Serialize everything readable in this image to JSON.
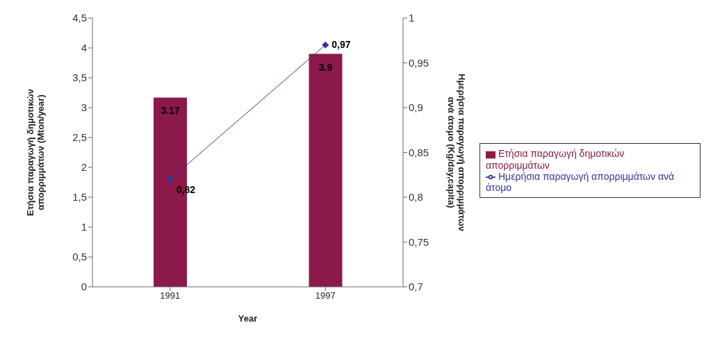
{
  "chart_data": {
    "type": "bar",
    "xlabel": "Year",
    "ylabel": "Ετήσια παραγωγή δημοτικών απορριμμάτων (Mton/year)",
    "y2label": "Ημερήσια παραγωγή απορριμμάτων ανά άτομο (Kg/day,capita)",
    "categories": [
      "1991",
      "1997"
    ],
    "series": [
      {
        "name": "Ετήσια παραγωγή δημοτικών απορριμμάτων",
        "color": "#8b1a4a",
        "values": [
          3.17,
          3.9
        ],
        "value_labels": [
          "3.17",
          "3.9"
        ]
      },
      {
        "name": "Ημερήσια παραγωγή απορριμμάτων ανά άτομο",
        "type": "line",
        "axis": "y2",
        "color": "#333399",
        "values": [
          0.82,
          0.97
        ],
        "value_labels": [
          "0,82",
          "0,97"
        ],
        "marker": "diamond"
      }
    ],
    "ylim": [
      0,
      4.5
    ],
    "yticks": [
      0,
      {
        "value": 0.5,
        "label": "0,5"
      },
      1,
      {
        "value": 1.5,
        "label": "1,5"
      },
      2,
      {
        "value": 2.5,
        "label": "2,5"
      },
      3,
      {
        "value": 3.5,
        "label": "3,5"
      },
      4,
      {
        "value": 4.5,
        "label": "4,5"
      }
    ],
    "y2lim": [
      0.7,
      1
    ],
    "y2ticks": [
      {
        "value": 0.7,
        "label": "0,7"
      },
      {
        "value": 0.75,
        "label": "0,75"
      },
      {
        "value": 0.8,
        "label": "0,8"
      },
      {
        "value": 0.85,
        "label": "0,85"
      },
      {
        "value": 0.9,
        "label": "0,9"
      },
      {
        "value": 0.95,
        "label": "0,95"
      },
      1
    ],
    "grid": false,
    "legend": "right"
  }
}
